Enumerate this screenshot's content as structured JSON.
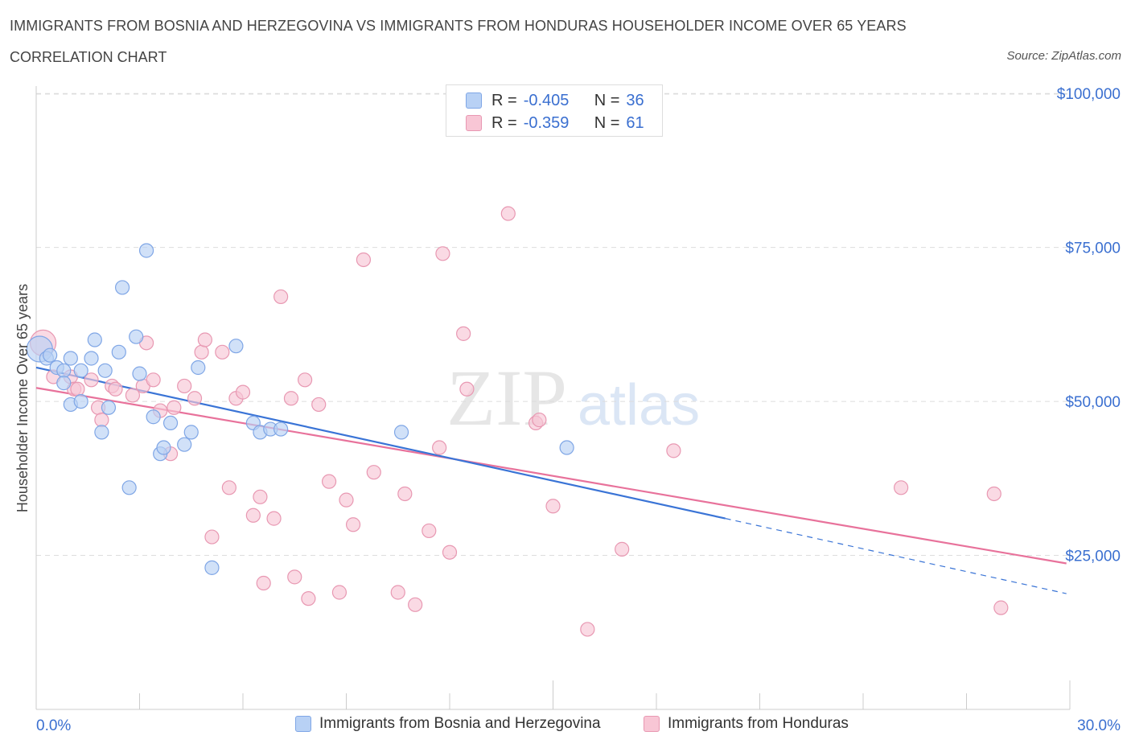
{
  "header": {
    "title": "IMMIGRANTS FROM BOSNIA AND HERZEGOVINA VS IMMIGRANTS FROM HONDURAS HOUSEHOLDER INCOME OVER 65 YEARS",
    "subtitle": "CORRELATION CHART",
    "source": "Source: ZipAtlas.com"
  },
  "watermark": {
    "zip": "ZIP",
    "atlas": "atlas"
  },
  "legend": {
    "r_label": "R =",
    "n_label": "N =",
    "series": [
      {
        "name": "Immigrants from Bosnia and Herzegovina",
        "r": "-0.405",
        "n": "36",
        "fill": "#b8d1f5",
        "stroke": "#7fa6e6"
      },
      {
        "name": "Immigrants from Honduras",
        "r": "-0.359",
        "n": "61",
        "fill": "#f8c6d5",
        "stroke": "#e898b2"
      }
    ]
  },
  "colors": {
    "blue_line": "#3a74d6",
    "pink_line": "#e8729b",
    "axis_text": "#3a6fd0",
    "grid": "#dddddd"
  },
  "chart_data": {
    "type": "scatter",
    "xlabel": "",
    "ylabel": "Householder Income Over 65 years",
    "xlim": [
      0,
      30
    ],
    "ylim": [
      0,
      100000
    ],
    "x_tick_labels": [
      "0.0%",
      "30.0%"
    ],
    "y_ticks": [
      25000,
      50000,
      75000,
      100000
    ],
    "y_tick_labels": [
      "$25,000",
      "$50,000",
      "$75,000",
      "$100,000"
    ],
    "grid": true,
    "legend_position": "top-center",
    "series": [
      {
        "name": "Immigrants from Bosnia and Herzegovina",
        "points": [
          [
            0.1,
            58500
          ],
          [
            0.3,
            57000
          ],
          [
            0.4,
            57500
          ],
          [
            0.6,
            55500
          ],
          [
            0.8,
            55000
          ],
          [
            0.8,
            53000
          ],
          [
            1.0,
            49500
          ],
          [
            1.0,
            57000
          ],
          [
            1.3,
            55000
          ],
          [
            1.3,
            50000
          ],
          [
            1.6,
            57000
          ],
          [
            1.7,
            60000
          ],
          [
            1.9,
            45000
          ],
          [
            2.0,
            55000
          ],
          [
            2.1,
            49000
          ],
          [
            2.4,
            58000
          ],
          [
            2.5,
            68500
          ],
          [
            2.7,
            36000
          ],
          [
            2.9,
            60500
          ],
          [
            3.0,
            54500
          ],
          [
            3.2,
            74500
          ],
          [
            3.4,
            47500
          ],
          [
            3.6,
            41500
          ],
          [
            3.7,
            42500
          ],
          [
            3.9,
            46500
          ],
          [
            4.3,
            43000
          ],
          [
            4.5,
            45000
          ],
          [
            4.7,
            55500
          ],
          [
            5.1,
            23000
          ],
          [
            5.8,
            59000
          ],
          [
            6.3,
            46500
          ],
          [
            6.5,
            45000
          ],
          [
            6.8,
            45500
          ],
          [
            7.1,
            45500
          ],
          [
            10.6,
            45000
          ],
          [
            15.4,
            42500
          ]
        ],
        "trend": {
          "x": [
            0.0,
            20.0
          ],
          "y": [
            55500,
            31000
          ]
        },
        "trend_dashed": {
          "x": [
            20.0,
            29.9
          ],
          "y": [
            31000,
            18800
          ]
        }
      },
      {
        "name": "Immigrants from Honduras",
        "points": [
          [
            0.2,
            59500
          ],
          [
            0.5,
            54000
          ],
          [
            1.0,
            54000
          ],
          [
            1.1,
            52000
          ],
          [
            1.2,
            52000
          ],
          [
            1.6,
            53500
          ],
          [
            1.8,
            49000
          ],
          [
            1.9,
            47000
          ],
          [
            2.2,
            52500
          ],
          [
            2.3,
            52000
          ],
          [
            2.8,
            51000
          ],
          [
            3.2,
            59500
          ],
          [
            3.1,
            52500
          ],
          [
            3.4,
            53500
          ],
          [
            3.6,
            48500
          ],
          [
            3.9,
            41500
          ],
          [
            4.0,
            49000
          ],
          [
            4.3,
            52500
          ],
          [
            4.6,
            50500
          ],
          [
            4.8,
            58000
          ],
          [
            4.9,
            60000
          ],
          [
            5.1,
            28000
          ],
          [
            5.4,
            58000
          ],
          [
            5.6,
            36000
          ],
          [
            5.8,
            50500
          ],
          [
            6.0,
            51500
          ],
          [
            6.3,
            31500
          ],
          [
            6.5,
            34500
          ],
          [
            6.6,
            20500
          ],
          [
            6.9,
            31000
          ],
          [
            7.1,
            67000
          ],
          [
            7.4,
            50500
          ],
          [
            7.5,
            21500
          ],
          [
            7.8,
            53500
          ],
          [
            7.9,
            18000
          ],
          [
            8.2,
            49500
          ],
          [
            8.5,
            37000
          ],
          [
            8.8,
            19000
          ],
          [
            9.0,
            34000
          ],
          [
            9.2,
            30000
          ],
          [
            9.5,
            73000
          ],
          [
            9.8,
            38500
          ],
          [
            10.5,
            19000
          ],
          [
            10.7,
            35000
          ],
          [
            11.0,
            17000
          ],
          [
            11.4,
            29000
          ],
          [
            11.7,
            42500
          ],
          [
            11.8,
            74000
          ],
          [
            12.0,
            25500
          ],
          [
            12.4,
            61000
          ],
          [
            12.5,
            52000
          ],
          [
            13.7,
            80500
          ],
          [
            14.5,
            46500
          ],
          [
            14.6,
            47000
          ],
          [
            15.0,
            33000
          ],
          [
            16.0,
            13000
          ],
          [
            17.0,
            26000
          ],
          [
            18.5,
            42000
          ],
          [
            25.1,
            36000
          ],
          [
            27.8,
            35000
          ],
          [
            28.0,
            16500
          ]
        ],
        "trend": {
          "x": [
            0.0,
            29.9
          ],
          "y": [
            52200,
            23700
          ]
        }
      }
    ]
  }
}
